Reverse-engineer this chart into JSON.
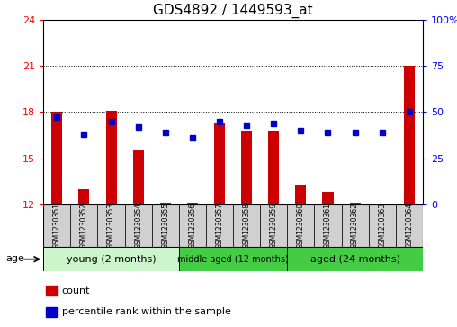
{
  "title": "GDS4892 / 1449593_at",
  "samples": [
    "GSM1230351",
    "GSM1230352",
    "GSM1230353",
    "GSM1230354",
    "GSM1230355",
    "GSM1230356",
    "GSM1230357",
    "GSM1230358",
    "GSM1230359",
    "GSM1230360",
    "GSM1230361",
    "GSM1230362",
    "GSM1230363",
    "GSM1230364"
  ],
  "count_values": [
    18.0,
    13.0,
    18.1,
    15.5,
    12.1,
    12.1,
    17.3,
    16.8,
    16.8,
    13.3,
    12.8,
    12.1,
    12.0,
    21.0
  ],
  "percentile_values": [
    47,
    38,
    45,
    42,
    39,
    36,
    45,
    43,
    44,
    40,
    39,
    39,
    39,
    50
  ],
  "ylim_left": [
    12,
    24
  ],
  "ylim_right": [
    0,
    100
  ],
  "yticks_left": [
    12,
    15,
    18,
    21,
    24
  ],
  "yticks_right": [
    0,
    25,
    50,
    75,
    100
  ],
  "bar_color": "#cc0000",
  "dot_color": "#0000cc",
  "bar_bottom": 12,
  "groups": [
    {
      "label": "young (2 months)",
      "start": 0,
      "end": 5,
      "color": "#ccf0cc"
    },
    {
      "label": "middle aged (12 months)",
      "start": 5,
      "end": 9,
      "color": "#44cc44"
    },
    {
      "label": "aged (24 months)",
      "start": 9,
      "end": 14,
      "color": "#44cc44"
    }
  ],
  "age_label": "age",
  "legend_items": [
    {
      "color": "#cc0000",
      "label": "count"
    },
    {
      "color": "#0000cc",
      "label": "percentile rank within the sample"
    }
  ],
  "grid_lines": [
    15,
    18,
    21
  ],
  "title_fontsize": 11,
  "tick_fontsize": 8,
  "label_fontsize": 8,
  "sample_box_color": "#d0d0d0",
  "group_border_color": "#000000"
}
